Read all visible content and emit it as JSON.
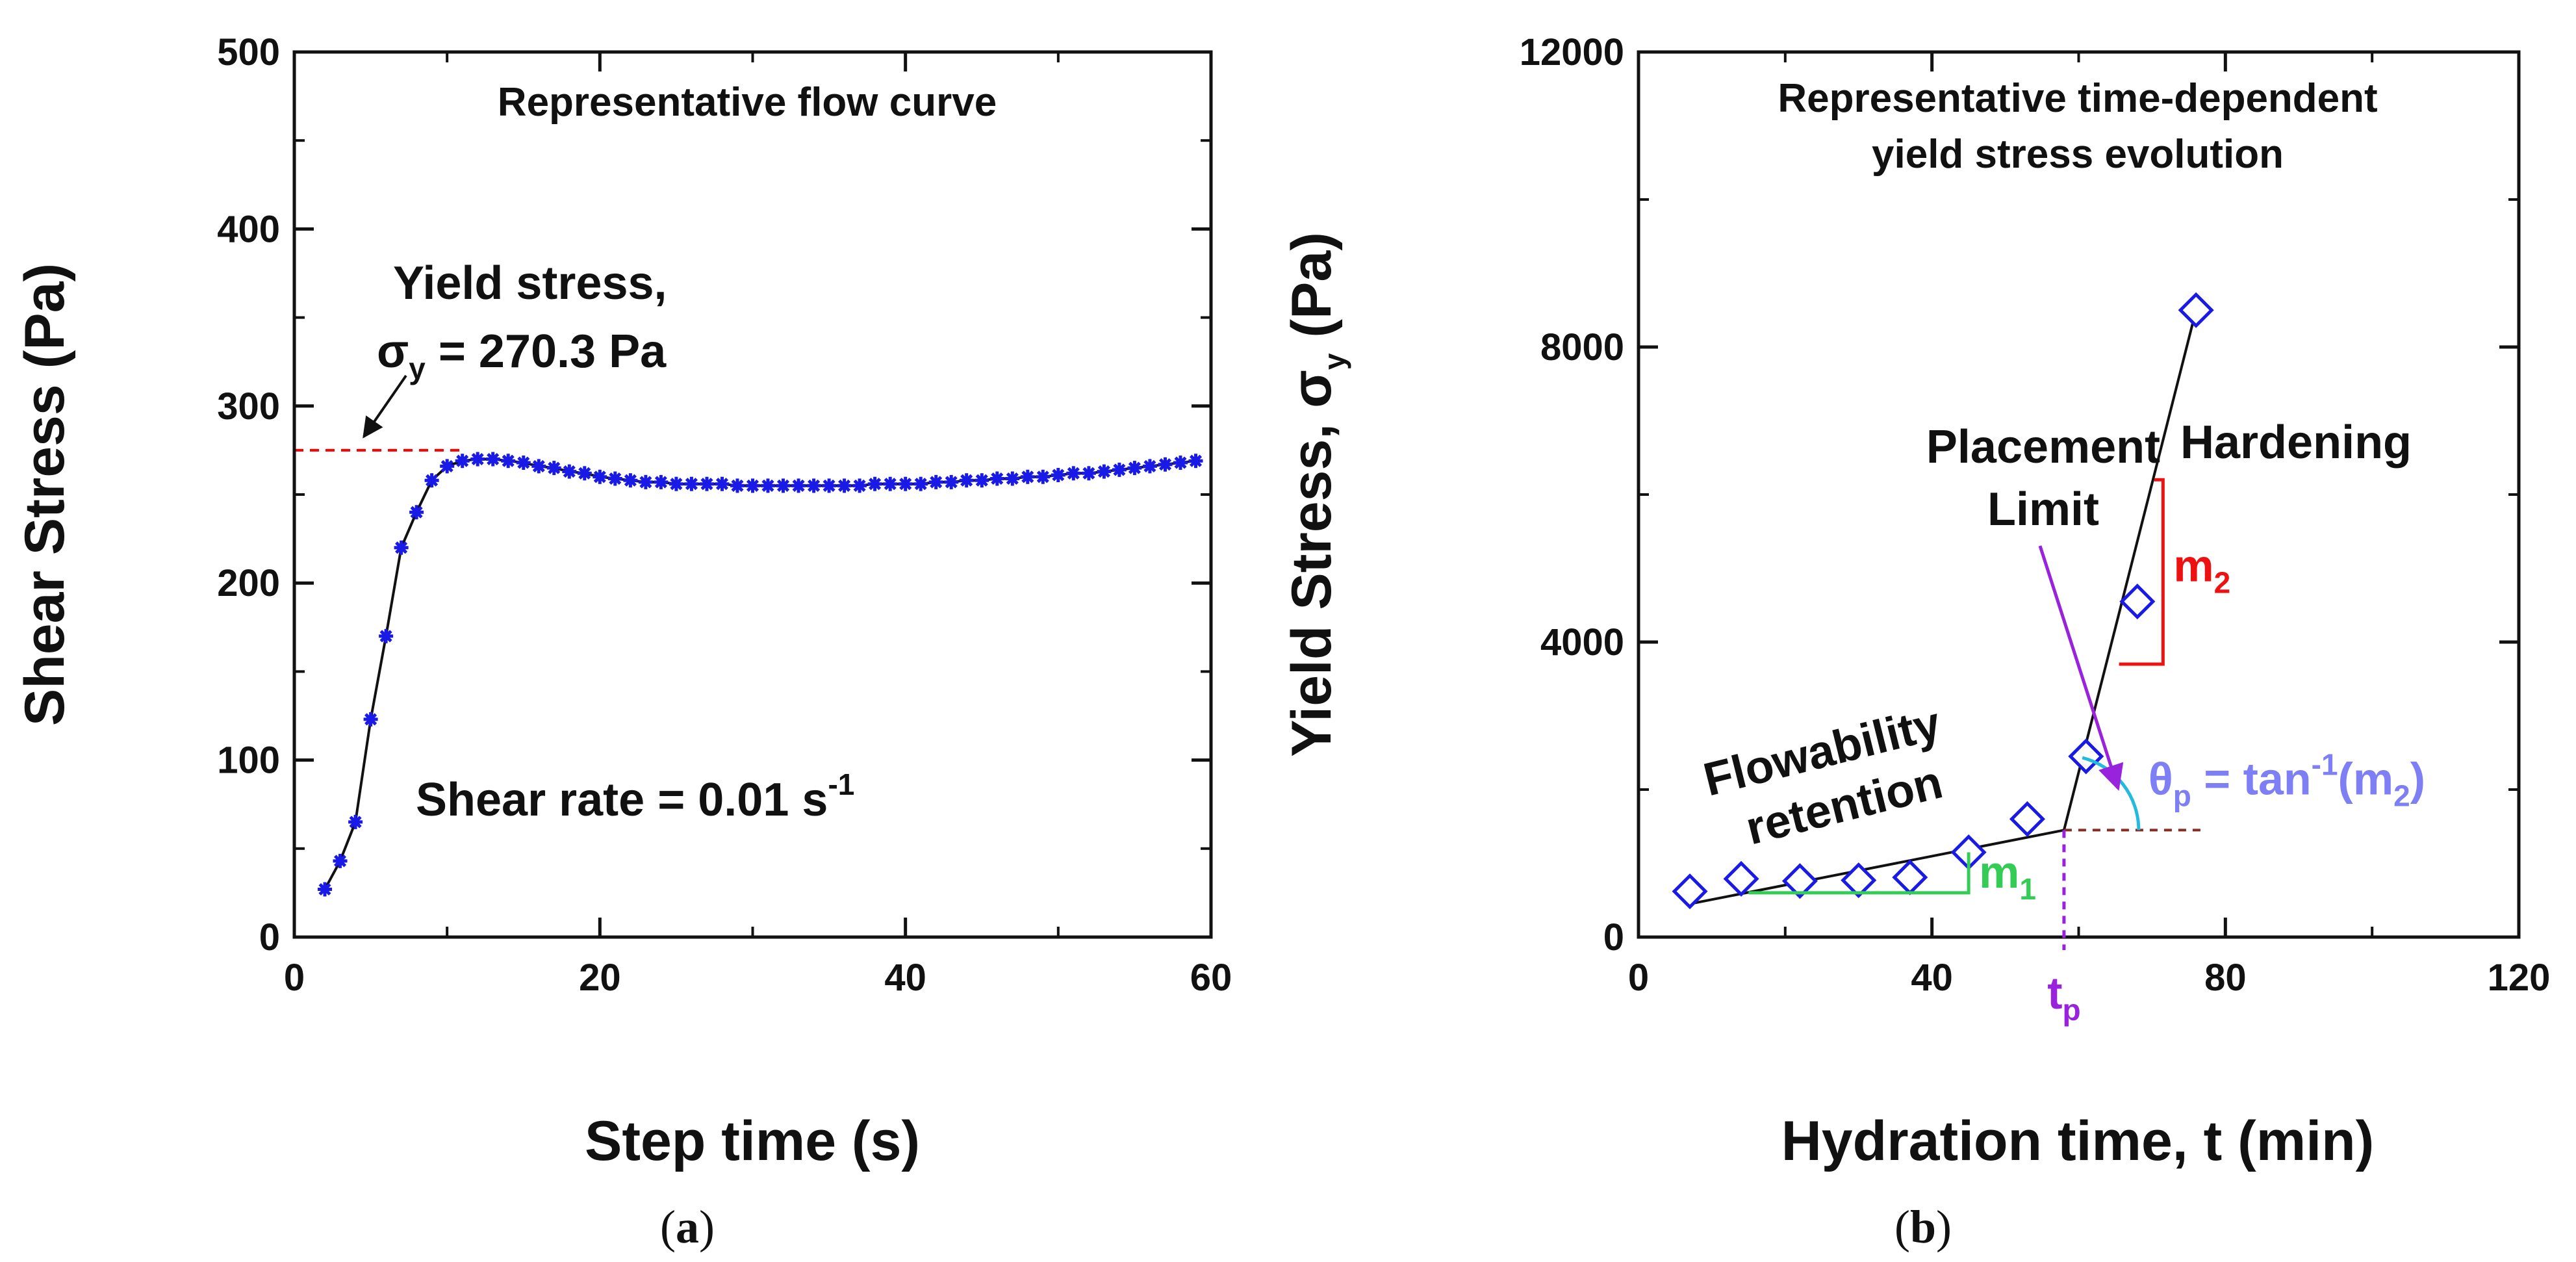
{
  "chart_data": [
    {
      "panel": "(a)",
      "panel_letter": "a",
      "type": "line",
      "title": "Representative flow curve",
      "xlabel": "Step time (s)",
      "ylabel": "Shear Stress (Pa)",
      "xlim": [
        0,
        60
      ],
      "ylim": [
        0,
        500
      ],
      "xticks": [
        0,
        20,
        40,
        60
      ],
      "yticks": [
        0,
        100,
        200,
        300,
        400,
        500
      ],
      "series": [
        {
          "name": "Shear stress",
          "marker": "asterisk",
          "color": "#1a1ae6",
          "x": [
            2,
            3,
            4,
            5,
            6,
            7,
            8,
            9,
            10,
            11,
            12,
            13,
            14,
            15,
            16,
            17,
            18,
            19,
            20,
            21,
            22,
            23,
            24,
            25,
            26,
            27,
            28,
            29,
            30,
            31,
            32,
            33,
            34,
            35,
            36,
            37,
            38,
            39,
            40,
            41,
            42,
            43,
            44,
            45,
            46,
            47,
            48,
            49,
            50,
            51,
            52,
            53,
            54,
            55,
            56,
            57,
            58,
            59
          ],
          "y": [
            27,
            43,
            65,
            123,
            170,
            220,
            240,
            258,
            266,
            269,
            270,
            270,
            269,
            268,
            266,
            265,
            263,
            262,
            260,
            259,
            258,
            257,
            257,
            256,
            256,
            256,
            256,
            255,
            255,
            255,
            255,
            255,
            255,
            255,
            255,
            255,
            256,
            256,
            256,
            256,
            257,
            257,
            258,
            258,
            259,
            259,
            260,
            260,
            261,
            262,
            262,
            263,
            264,
            265,
            266,
            267,
            268,
            269
          ]
        }
      ],
      "reference_line": {
        "y": 275,
        "x_range": [
          0,
          11
        ],
        "color": "#ff0000",
        "style": "dashed"
      },
      "annotations": {
        "yield_line1": "Yield stress,",
        "yield_sigma": "σ",
        "yield_sub": "y",
        "yield_value": " = 270.3 Pa",
        "shear_rate": "Shear rate = 0.01 s",
        "shear_rate_sup": "-1"
      }
    },
    {
      "panel": "(b)",
      "panel_letter": "b",
      "type": "scatter",
      "title_line1": "Representative time-dependent",
      "title_line2": "yield stress evolution",
      "xlabel": "Hydration time, t (min)",
      "ylabel_main": "Yield Stress, σ",
      "ylabel_sub": "y",
      "ylabel_end": " (Pa)",
      "xlim": [
        0,
        120
      ],
      "ylim": [
        0,
        12000
      ],
      "xticks": [
        0,
        40,
        80,
        120
      ],
      "yticks": [
        0,
        4000,
        8000,
        12000
      ],
      "series": [
        {
          "name": "Yield stress",
          "marker": "diamond",
          "color": "#1a1ae6",
          "x": [
            7,
            14,
            22,
            30,
            37,
            45,
            53,
            61,
            68,
            76
          ],
          "y": [
            620,
            790,
            760,
            770,
            810,
            1150,
            1600,
            2450,
            4550,
            8500
          ]
        }
      ],
      "fit_lines": [
        {
          "name": "Flowability retention",
          "x": [
            7,
            58
          ],
          "y": [
            450,
            1450
          ]
        },
        {
          "name": "Hardening",
          "x": [
            58,
            76
          ],
          "y": [
            1450,
            8500
          ]
        }
      ],
      "t_p": 58,
      "annotations": {
        "placement1": "Placement",
        "placement2": "Limit",
        "hardening": "Hardening",
        "flow1": "Flowability",
        "flow2": "retention",
        "m": "m",
        "m1_sub": "1",
        "m2_sub": "2",
        "tp": "t",
        "tp_sub": "p",
        "theta": "θ",
        "theta_sub": "p",
        "theta_eq": " = tan",
        "theta_sup": "-1",
        "theta_end": "(m",
        "theta_sub2": "2",
        "theta_close": ")"
      },
      "colors": {
        "m1": "#33cc55",
        "m2": "#ee1111",
        "tp": "#9922dd",
        "theta": "#7f7ff5",
        "arc": "#22bbdd",
        "arrow": "#9922dd",
        "ref": "#8b2a1f"
      }
    }
  ]
}
